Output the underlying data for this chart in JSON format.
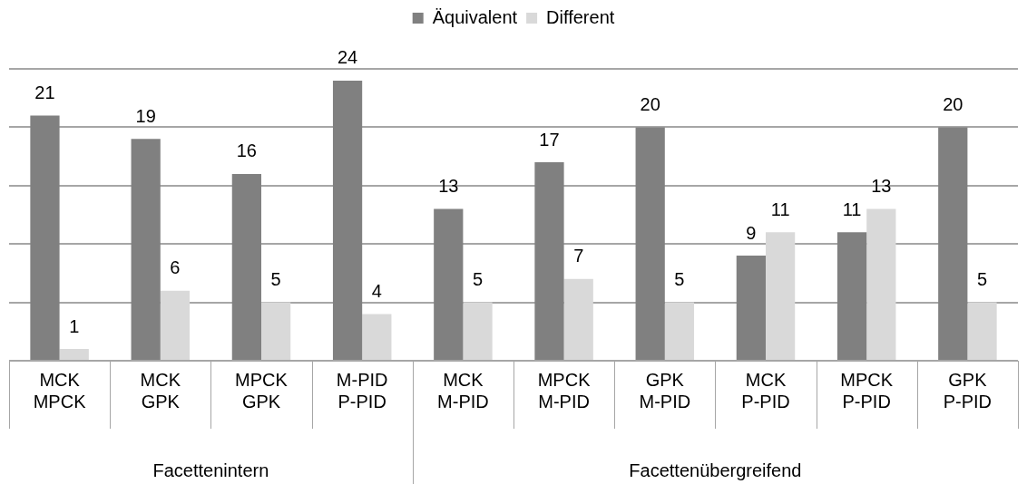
{
  "chart_data": {
    "type": "bar",
    "categories": [
      "MCK\nMPCK",
      "MCK\nGPK",
      "MPCK\nGPK",
      "M-PID\nP-PID",
      "MCK\nM-PID",
      "MPCK\nM-PID",
      "GPK\nM-PID",
      "MCK\nP-PID",
      "MPCK\nP-PID",
      "GPK\nP-PID"
    ],
    "series": [
      {
        "name": "Äquivalent",
        "color": "#808080",
        "values": [
          21,
          19,
          16,
          24,
          13,
          17,
          20,
          9,
          11,
          20
        ]
      },
      {
        "name": "Different",
        "color": "#d9d9d9",
        "values": [
          1,
          6,
          5,
          4,
          5,
          7,
          5,
          11,
          13,
          5
        ]
      }
    ],
    "ylim": [
      0,
      25
    ],
    "yticks": [
      {
        "value": 0,
        "label": null
      },
      {
        "value": 5,
        "label": null
      },
      {
        "value": 10,
        "label": null
      },
      {
        "value": 15,
        "label": null
      },
      {
        "value": 20,
        "label": null
      },
      {
        "value": 25,
        "label": null
      }
    ],
    "tick_labels": "x",
    "grid": "y",
    "legend": "top",
    "data_labels": true,
    "annotations": [
      "Facettenintern",
      "Facettenübergreifend"
    ]
  }
}
